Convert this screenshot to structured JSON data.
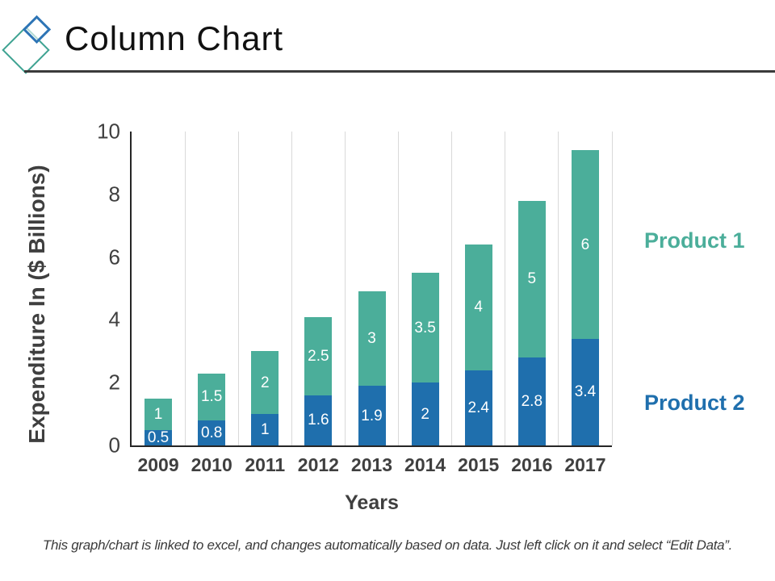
{
  "header": {
    "title": "Column Chart",
    "logo": {
      "outer_diamond_color": "#3fa392",
      "inner_diamond_color": "#2e75b6"
    }
  },
  "chart_data": {
    "type": "bar",
    "stacked": true,
    "categories": [
      "2009",
      "2010",
      "2011",
      "2012",
      "2013",
      "2014",
      "2015",
      "2016",
      "2017"
    ],
    "series": [
      {
        "name": "Product 2",
        "color": "#1f6fad",
        "values": [
          0.5,
          0.8,
          1,
          1.6,
          1.9,
          2,
          2.4,
          2.8,
          3.4
        ]
      },
      {
        "name": "Product 1",
        "color": "#4bae9a",
        "values": [
          1,
          1.5,
          2,
          2.5,
          3,
          3.5,
          4,
          5,
          6
        ]
      }
    ],
    "xlabel": "Years",
    "ylabel": "Expenditure In ($ Billions)",
    "ylim": [
      0,
      10
    ],
    "yticks": [
      0,
      2,
      4,
      6,
      8,
      10
    ],
    "grid": "vertical-only",
    "gridline_color": "#d9d9d9",
    "axis_line_color": "#262626",
    "value_labels": true,
    "value_label_color": "#ffffff",
    "legend_position": "right"
  },
  "footer": {
    "note": "This graph/chart is linked to excel, and changes automatically based on data. Just left click on it and select “Edit Data”."
  }
}
